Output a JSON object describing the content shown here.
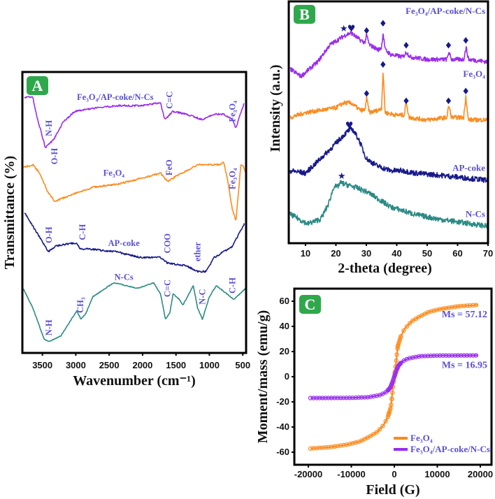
{
  "colors": {
    "purple": "#9a2cf0",
    "orange": "#ff8a1c",
    "navy": "#17198a",
    "teal": "#2b8a84",
    "label": "#5a4fd6",
    "badge": "#2fa84c"
  },
  "chart_data": [
    {
      "id": "A",
      "badge": "A",
      "type": "line",
      "title": "",
      "xlabel": "Wavenumber (cm⁻¹)",
      "ylabel": "Transmittance (%)",
      "xlim": [
        3800,
        450
      ],
      "ylim": [
        0,
        100
      ],
      "xticks": [
        3500,
        3000,
        2500,
        2000,
        1500,
        1000,
        500
      ],
      "grid": false,
      "series": [
        {
          "name": "Fe₃O₄/AP-coke/N-Cs",
          "color": "purple",
          "points": [
            [
              3769,
              91
            ],
            [
              3643,
              91
            ],
            [
              3581,
              84
            ],
            [
              3455,
              73
            ],
            [
              3330,
              76
            ],
            [
              3194,
              82
            ],
            [
              3016,
              86
            ],
            [
              2745,
              87
            ],
            [
              2389,
              88
            ],
            [
              2044,
              88
            ],
            [
              1731,
              89
            ],
            [
              1679,
              84
            ],
            [
              1658,
              83
            ],
            [
              1553,
              86
            ],
            [
              1344,
              85
            ],
            [
              1104,
              83
            ],
            [
              926,
              85
            ],
            [
              790,
              85
            ],
            [
              655,
              83
            ],
            [
              602,
              80
            ],
            [
              550,
              84
            ],
            [
              477,
              89
            ]
          ]
        },
        {
          "name": "Fe₃O₄",
          "color": "orange",
          "points": [
            [
              3790,
              66
            ],
            [
              3643,
              67
            ],
            [
              3539,
              64
            ],
            [
              3434,
              58
            ],
            [
              3319,
              54
            ],
            [
              3089,
              56
            ],
            [
              2745,
              59
            ],
            [
              2389,
              60
            ],
            [
              2044,
              62
            ],
            [
              1731,
              64
            ],
            [
              1626,
              61
            ],
            [
              1490,
              63
            ],
            [
              1177,
              67
            ],
            [
              822,
              67
            ],
            [
              790,
              68
            ],
            [
              738,
              63
            ],
            [
              655,
              51
            ],
            [
              602,
              47
            ],
            [
              529,
              67
            ],
            [
              498,
              67
            ],
            [
              456,
              64
            ]
          ]
        },
        {
          "name": "AP-coke",
          "color": "navy",
          "points": [
            [
              3769,
              50
            ],
            [
              3612,
              44
            ],
            [
              3487,
              39
            ],
            [
              3413,
              36
            ],
            [
              3298,
              38
            ],
            [
              3089,
              39
            ],
            [
              2985,
              39
            ],
            [
              2933,
              37
            ],
            [
              2807,
              37
            ],
            [
              2389,
              36
            ],
            [
              2044,
              34
            ],
            [
              1731,
              34
            ],
            [
              1626,
              32
            ],
            [
              1344,
              31
            ],
            [
              1177,
              29
            ],
            [
              1052,
              29
            ],
            [
              926,
              34
            ],
            [
              655,
              38
            ],
            [
              477,
              46
            ]
          ]
        },
        {
          "name": "N-Cs",
          "color": "teal",
          "points": [
            [
              3790,
              23
            ],
            [
              3643,
              16
            ],
            [
              3476,
              5
            ],
            [
              3403,
              4
            ],
            [
              3225,
              6
            ],
            [
              2985,
              15
            ],
            [
              2922,
              12
            ],
            [
              2849,
              14
            ],
            [
              2745,
              20
            ],
            [
              2431,
              25
            ],
            [
              2076,
              23
            ],
            [
              1835,
              25
            ],
            [
              1731,
              21
            ],
            [
              1658,
              12
            ],
            [
              1595,
              14
            ],
            [
              1543,
              21
            ],
            [
              1449,
              19
            ],
            [
              1396,
              17
            ],
            [
              1240,
              24
            ],
            [
              1177,
              16
            ],
            [
              1104,
              12
            ],
            [
              999,
              20
            ],
            [
              895,
              24
            ],
            [
              634,
              19
            ],
            [
              456,
              23
            ]
          ]
        }
      ],
      "annotations": [
        {
          "text": "Fe₃O₄/AP-coke/N-Cs",
          "x": 2410,
          "y": 90,
          "rotate": false
        },
        {
          "text": "N-H",
          "x": 3403,
          "y": 80,
          "rotate": true
        },
        {
          "text": "O-H",
          "x": 3320,
          "y": 70,
          "rotate": true
        },
        {
          "text": "C=C",
          "x": 1595,
          "y": 90,
          "rotate": true
        },
        {
          "text": "Fe₃O₄",
          "x": 655,
          "y": 86,
          "rotate": true
        },
        {
          "text": "Fe₃O₄",
          "x": 2430,
          "y": 63,
          "rotate": false
        },
        {
          "text": "FeO",
          "x": 1600,
          "y": 66,
          "rotate": true
        },
        {
          "text": "Fe₃O₄",
          "x": 655,
          "y": 62,
          "rotate": true
        },
        {
          "text": "O-H",
          "x": 3403,
          "y": 42,
          "rotate": true
        },
        {
          "text": "C-H",
          "x": 2900,
          "y": 43,
          "rotate": true
        },
        {
          "text": "AP-coke",
          "x": 2280,
          "y": 38,
          "rotate": false
        },
        {
          "text": "COO",
          "x": 1626,
          "y": 39,
          "rotate": true
        },
        {
          "text": "ether",
          "x": 1177,
          "y": 36,
          "rotate": true
        },
        {
          "text": "N-Cs",
          "x": 2280,
          "y": 26,
          "rotate": false
        },
        {
          "text": "CH₃",
          "x": 2933,
          "y": 17,
          "rotate": true
        },
        {
          "text": "C=C",
          "x": 1626,
          "y": 23,
          "rotate": true
        },
        {
          "text": "N-C",
          "x": 1104,
          "y": 20,
          "rotate": true
        },
        {
          "text": "C-H",
          "x": 655,
          "y": 24,
          "rotate": true
        },
        {
          "text": "N-H",
          "x": 3403,
          "y": 9,
          "rotate": true
        }
      ]
    },
    {
      "id": "B",
      "badge": "B",
      "type": "line",
      "title": "",
      "xlabel": "2-theta (degree)",
      "ylabel": "Intensity (a.u.)",
      "xlim": [
        4.5,
        70
      ],
      "ylim": [
        0,
        100
      ],
      "xticks": [
        10,
        20,
        30,
        40,
        50,
        60,
        70
      ],
      "grid": false,
      "series": [
        {
          "name": "Fe₃O₄/AP-coke/N-Cs",
          "color": "purple",
          "label_y": 96,
          "points": [
            [
              5,
              72
            ],
            [
              8.5,
              69
            ],
            [
              14,
              75
            ],
            [
              18,
              82
            ],
            [
              23,
              86
            ],
            [
              25,
              87
            ],
            [
              28,
              84
            ],
            [
              29.5,
              83
            ],
            [
              30.1,
              86
            ],
            [
              31,
              82
            ],
            [
              34,
              80
            ],
            [
              35,
              81
            ],
            [
              35.5,
              87
            ],
            [
              36.2,
              80
            ],
            [
              38,
              78
            ],
            [
              42,
              77
            ],
            [
              43.2,
              79
            ],
            [
              44.5,
              77
            ],
            [
              50,
              76
            ],
            [
              56.5,
              76
            ],
            [
              57.1,
              79
            ],
            [
              58,
              76
            ],
            [
              62,
              76
            ],
            [
              62.8,
              81
            ],
            [
              63.6,
              76
            ],
            [
              70,
              75
            ]
          ]
        },
        {
          "name": "Fe₃O₄",
          "color": "orange",
          "label_y": 70,
          "points": [
            [
              5,
              52
            ],
            [
              10,
              54
            ],
            [
              15,
              55
            ],
            [
              20,
              56
            ],
            [
              22.5,
              58
            ],
            [
              25,
              58
            ],
            [
              28,
              55
            ],
            [
              29.5,
              55
            ],
            [
              30.1,
              60
            ],
            [
              31,
              54
            ],
            [
              34,
              55
            ],
            [
              35,
              56
            ],
            [
              35.5,
              71
            ],
            [
              36.2,
              54
            ],
            [
              40,
              53
            ],
            [
              42.5,
              53
            ],
            [
              43.1,
              59
            ],
            [
              44,
              52
            ],
            [
              50,
              51
            ],
            [
              56.5,
              52
            ],
            [
              57.1,
              57
            ],
            [
              58,
              52
            ],
            [
              62,
              52
            ],
            [
              62.7,
              61
            ],
            [
              63.5,
              51
            ],
            [
              70,
              51
            ]
          ]
        },
        {
          "name": "AP-coke",
          "color": "navy",
          "label_y": 31,
          "points": [
            [
              5,
              30
            ],
            [
              10,
              29
            ],
            [
              15,
              35
            ],
            [
              19,
              40
            ],
            [
              22,
              44
            ],
            [
              24.5,
              47
            ],
            [
              25.5,
              47
            ],
            [
              27.5,
              43
            ],
            [
              30,
              35
            ],
            [
              33.5,
              32
            ],
            [
              38,
              30
            ],
            [
              42,
              30
            ],
            [
              46,
              29
            ],
            [
              55,
              28
            ],
            [
              70,
              26
            ]
          ]
        },
        {
          "name": "N-Cs",
          "color": "teal",
          "label_y": 12,
          "points": [
            [
              5,
              12
            ],
            [
              10.7,
              8
            ],
            [
              15,
              10
            ],
            [
              17.5,
              16
            ],
            [
              19.5,
              24
            ],
            [
              20.3,
              23
            ],
            [
              21.5,
              25
            ],
            [
              26.7,
              23
            ],
            [
              30.6,
              21
            ],
            [
              38,
              15
            ],
            [
              45.7,
              12
            ],
            [
              53.5,
              10
            ],
            [
              70,
              7
            ]
          ]
        }
      ],
      "markers": [
        {
          "symbol": "★",
          "x": 22.6,
          "y": 89
        },
        {
          "symbol": "♥",
          "x": 25.1,
          "y": 89
        },
        {
          "symbol": "♦",
          "x": 30.1,
          "y": 88
        },
        {
          "symbol": "♦",
          "x": 35.5,
          "y": 91
        },
        {
          "symbol": "♦",
          "x": 43.1,
          "y": 82
        },
        {
          "symbol": "♦",
          "x": 57.0,
          "y": 82
        },
        {
          "symbol": "♦",
          "x": 62.7,
          "y": 84
        },
        {
          "symbol": "♦",
          "x": 30.1,
          "y": 62
        },
        {
          "symbol": "♦",
          "x": 35.5,
          "y": 74
        },
        {
          "symbol": "♦",
          "x": 43.1,
          "y": 59
        },
        {
          "symbol": "♦",
          "x": 57.0,
          "y": 59
        },
        {
          "symbol": "♦",
          "x": 62.7,
          "y": 63
        },
        {
          "symbol": "♥",
          "x": 24.4,
          "y": 49
        },
        {
          "symbol": "★",
          "x": 21.9,
          "y": 28
        }
      ]
    },
    {
      "id": "C",
      "badge": "C",
      "type": "scatter",
      "title": "",
      "xlabel": "Field (G)",
      "ylabel": "Moment/mass (emu/g)",
      "xlim": [
        -23250,
        22600
      ],
      "ylim": [
        -70,
        70
      ],
      "xticks": [
        -20000,
        -10000,
        0,
        10000,
        20000
      ],
      "yticks": [
        -60,
        -40,
        -20,
        0,
        20,
        40,
        60
      ],
      "grid": false,
      "legend": "bottom-right",
      "series": [
        {
          "name": "Fe₃O₄",
          "color": "orange",
          "ms_label": "Ms = 57.12",
          "ms": 57.12,
          "points": [
            [
              -19500,
              -57.1
            ],
            [
              -15000,
              -56
            ],
            [
              -11000,
              -54
            ],
            [
              -8000,
              -51.5
            ],
            [
              -5700,
              -47.5
            ],
            [
              -4000,
              -44
            ],
            [
              -2400,
              -38
            ],
            [
              -1500,
              -32
            ],
            [
              -800,
              -24
            ],
            [
              -300,
              -8
            ],
            [
              0,
              0
            ],
            [
              300,
              8
            ],
            [
              800,
              24
            ],
            [
              1500,
              32
            ],
            [
              2400,
              38
            ],
            [
              4000,
              44
            ],
            [
              5700,
              47.5
            ],
            [
              8000,
              51.5
            ],
            [
              11000,
              54
            ],
            [
              15000,
              56
            ],
            [
              19500,
              57.1
            ]
          ]
        },
        {
          "name": "Fe₃O₄/AP-coke/N-Cs",
          "color": "purple",
          "ms_label": "Ms = 16.95",
          "ms": 16.95,
          "points": [
            [
              -19500,
              -16.95
            ],
            [
              -10000,
              -16.8
            ],
            [
              -6000,
              -16.3
            ],
            [
              -3200,
              -14.5
            ],
            [
              -1800,
              -12
            ],
            [
              -1000,
              -9
            ],
            [
              -500,
              -5
            ],
            [
              0,
              0
            ],
            [
              500,
              5
            ],
            [
              1000,
              9
            ],
            [
              1800,
              12
            ],
            [
              3200,
              14.5
            ],
            [
              6000,
              16.3
            ],
            [
              10000,
              16.8
            ],
            [
              19500,
              16.95
            ]
          ]
        }
      ]
    }
  ]
}
